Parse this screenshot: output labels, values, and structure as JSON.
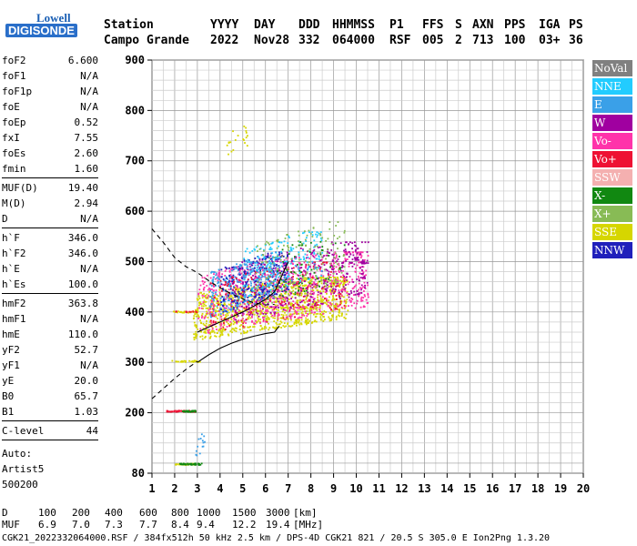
{
  "logo": {
    "line1": "Lowell",
    "line2": "DIGISONDE"
  },
  "header": {
    "line1": [
      "Station",
      "YYYY",
      "DAY",
      "DDD",
      "HHMMSS",
      "P1",
      "FFS",
      "S",
      "AXN",
      "PPS",
      "IGA",
      "PS"
    ],
    "line2": [
      "Campo Grande",
      "2022",
      "Nov28",
      "332",
      "064000",
      "RSF",
      "005",
      "2",
      "713",
      "100",
      "03+",
      "36"
    ]
  },
  "left_panel": {
    "groups": [
      [
        {
          "k": "foF2",
          "v": "6.600"
        },
        {
          "k": "foF1",
          "v": "N/A"
        },
        {
          "k": "foF1p",
          "v": "N/A"
        },
        {
          "k": "foE",
          "v": "N/A"
        },
        {
          "k": "foEp",
          "v": "0.52"
        },
        {
          "k": "fxI",
          "v": "7.55"
        },
        {
          "k": "foEs",
          "v": "2.60"
        },
        {
          "k": "fmin",
          "v": "1.60"
        }
      ],
      [
        {
          "k": "MUF(D)",
          "v": "19.40"
        },
        {
          "k": "M(D)",
          "v": "2.94"
        },
        {
          "k": "D",
          "v": "N/A"
        }
      ],
      [
        {
          "k": "h`F",
          "v": "346.0"
        },
        {
          "k": "h`F2",
          "v": "346.0"
        },
        {
          "k": "h`E",
          "v": "N/A"
        },
        {
          "k": "h`Es",
          "v": "100.0"
        }
      ],
      [
        {
          "k": "hmF2",
          "v": "363.8"
        },
        {
          "k": "hmF1",
          "v": "N/A"
        },
        {
          "k": "hmE",
          "v": "110.0"
        },
        {
          "k": "yF2",
          "v": "52.7"
        },
        {
          "k": "yF1",
          "v": "N/A"
        },
        {
          "k": "yE",
          "v": "20.0"
        },
        {
          "k": "B0",
          "v": "65.7"
        },
        {
          "k": "B1",
          "v": "1.03"
        }
      ],
      [
        {
          "k": "C-level",
          "v": "44"
        }
      ]
    ],
    "auto": [
      "Auto:",
      "Artist5",
      "500200"
    ]
  },
  "legend": [
    {
      "label": "NoVal",
      "color": "#808080"
    },
    {
      "label": "NNE",
      "color": "#22ccff"
    },
    {
      "label": "E",
      "color": "#3aa0e8"
    },
    {
      "label": "W",
      "color": "#a000a0"
    },
    {
      "label": "Vo-",
      "color": "#ff33aa"
    },
    {
      "label": "Vo+",
      "color": "#ee1133"
    },
    {
      "label": "SSW",
      "color": "#f4b0b0"
    },
    {
      "label": "X-",
      "color": "#118811"
    },
    {
      "label": "X+",
      "color": "#88bb55"
    },
    {
      "label": "SSE",
      "color": "#d6d600"
    },
    {
      "label": "NNW",
      "color": "#2020bb"
    }
  ],
  "chart_data": {
    "type": "scatter",
    "xlim": [
      1,
      20
    ],
    "ylim": [
      80,
      900
    ],
    "x_ticks": [
      1,
      2,
      3,
      4,
      5,
      6,
      7,
      8,
      9,
      10,
      11,
      12,
      13,
      14,
      15,
      16,
      17,
      18,
      19,
      20
    ],
    "y_ticks": [
      80,
      200,
      300,
      400,
      500,
      600,
      700,
      800,
      900
    ],
    "grid": true,
    "legend_position": "right",
    "traces": [
      {
        "name": "trace-h-virtual",
        "style": "solid",
        "points": [
          [
            3.0,
            360
          ],
          [
            3.5,
            370
          ],
          [
            4.0,
            380
          ],
          [
            4.5,
            390
          ],
          [
            5.0,
            400
          ],
          [
            5.5,
            412
          ],
          [
            6.0,
            425
          ],
          [
            6.4,
            440
          ],
          [
            6.6,
            460
          ],
          [
            7.0,
            500
          ]
        ]
      },
      {
        "name": "trace-lower",
        "style": "solid",
        "points": [
          [
            3.0,
            300
          ],
          [
            3.5,
            315
          ],
          [
            4.0,
            328
          ],
          [
            4.5,
            338
          ],
          [
            5.0,
            346
          ],
          [
            5.5,
            352
          ],
          [
            6.0,
            357
          ],
          [
            6.4,
            360
          ],
          [
            6.6,
            372
          ]
        ]
      },
      {
        "name": "trace-profile-low",
        "style": "dashed",
        "points": [
          [
            1.0,
            228
          ],
          [
            1.5,
            248
          ],
          [
            2.0,
            268
          ],
          [
            2.5,
            286
          ],
          [
            3.0,
            302
          ]
        ]
      },
      {
        "name": "trace-profile-high",
        "style": "dashed",
        "points": [
          [
            1.0,
            565
          ],
          [
            1.5,
            538
          ],
          [
            2.0,
            508
          ],
          [
            2.5,
            490
          ],
          [
            3.0,
            478
          ],
          [
            3.5,
            462
          ],
          [
            4.0,
            448
          ],
          [
            4.5,
            436
          ],
          [
            5.0,
            426
          ],
          [
            5.5,
            418
          ],
          [
            6.0,
            414
          ],
          [
            6.4,
            415
          ]
        ]
      }
    ],
    "clusters": [
      {
        "color": "#d6d600",
        "xr": [
          2.8,
          9.6
        ],
        "yr": [
          345,
          470
        ],
        "n": 1100
      },
      {
        "color": "#ff33aa",
        "xr": [
          3.0,
          10.5
        ],
        "yr": [
          355,
          520
        ],
        "n": 700
      },
      {
        "color": "#a000a0",
        "xr": [
          4.5,
          10.5
        ],
        "yr": [
          380,
          540
        ],
        "n": 450
      },
      {
        "color": "#3aa0e8",
        "xr": [
          3.5,
          6.5
        ],
        "yr": [
          390,
          510
        ],
        "n": 300
      },
      {
        "color": "#2020bb",
        "xr": [
          4.0,
          7.0
        ],
        "yr": [
          400,
          520
        ],
        "n": 180
      },
      {
        "color": "#22ccff",
        "xr": [
          5.0,
          8.5
        ],
        "yr": [
          420,
          560
        ],
        "n": 200
      },
      {
        "color": "#ee1133",
        "xr": [
          3.5,
          9.5
        ],
        "yr": [
          360,
          500
        ],
        "n": 150
      },
      {
        "color": "#88bb55",
        "xr": [
          5.5,
          9.5
        ],
        "yr": [
          400,
          580
        ],
        "n": 160
      },
      {
        "color": "#118811",
        "xr": [
          6.5,
          9.5
        ],
        "yr": [
          420,
          560
        ],
        "n": 60
      },
      {
        "color": "#d6d600",
        "xr": [
          2.0,
          2.9
        ],
        "yr": [
          98,
          102
        ],
        "n": 45
      },
      {
        "color": "#118811",
        "xr": [
          2.2,
          3.2
        ],
        "yr": [
          98,
          102
        ],
        "n": 40
      },
      {
        "color": "#ee1133",
        "xr": [
          1.6,
          2.9
        ],
        "yr": [
          203,
          207
        ],
        "n": 40
      },
      {
        "color": "#118811",
        "xr": [
          2.3,
          3.0
        ],
        "yr": [
          203,
          207
        ],
        "n": 25
      },
      {
        "color": "#d6d600",
        "xr": [
          1.7,
          3.1
        ],
        "yr": [
          302,
          306
        ],
        "n": 30
      },
      {
        "color": "#d6d600",
        "xr": [
          1.9,
          3.0
        ],
        "yr": [
          400,
          404
        ],
        "n": 25
      },
      {
        "color": "#ee1133",
        "xr": [
          2.0,
          3.0
        ],
        "yr": [
          401,
          404
        ],
        "n": 12
      },
      {
        "color": "#d6d600",
        "xr": [
          4.2,
          5.2
        ],
        "yr": [
          710,
          770
        ],
        "n": 20
      },
      {
        "color": "#3aa0e8",
        "xr": [
          2.8,
          3.3
        ],
        "yr": [
          110,
          160
        ],
        "n": 14
      }
    ],
    "marks": [
      {
        "x": 10.0,
        "y": 505,
        "color": "#a000a0"
      },
      {
        "x": 10.3,
        "y": 498,
        "color": "#a000a0"
      }
    ]
  },
  "data_table": {
    "d_row": [
      "D",
      "100",
      "200",
      "400",
      "600",
      "800",
      "1000",
      "1500",
      "3000",
      "[km]"
    ],
    "muf_row": [
      "MUF",
      "6.9",
      "7.0",
      "7.3",
      "7.7",
      "8.4",
      "9.4",
      "12.2",
      "19.4",
      "[MHz]"
    ]
  },
  "footer": "CGK21_2022332064000.RSF / 384fx512h 50 kHz 2.5 km / DPS-4D CGK21 821 / 20.5 S 305.0 E Ion2Png 1.3.20"
}
